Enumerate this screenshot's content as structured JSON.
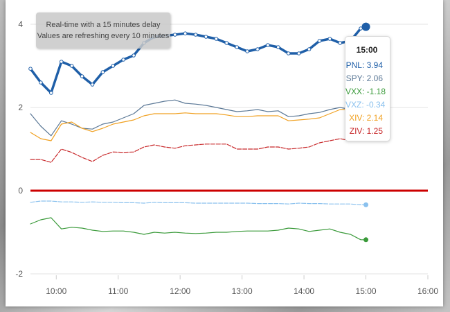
{
  "chart_data": {
    "type": "line",
    "xlim": [
      "09:35",
      "16:00"
    ],
    "ylim": [
      -2,
      4
    ],
    "x_ticks": [
      "10:00",
      "11:00",
      "12:00",
      "13:00",
      "14:00",
      "15:00",
      "16:00"
    ],
    "y_ticks": [
      "4",
      "2",
      "0",
      "-2"
    ],
    "grid": true,
    "x": [
      "09:35",
      "09:45",
      "09:55",
      "10:05",
      "10:15",
      "10:25",
      "10:35",
      "10:45",
      "10:55",
      "11:05",
      "11:15",
      "11:25",
      "11:35",
      "11:45",
      "11:55",
      "12:05",
      "12:15",
      "12:25",
      "12:35",
      "12:45",
      "12:55",
      "13:05",
      "13:15",
      "13:25",
      "13:35",
      "13:45",
      "13:55",
      "14:05",
      "14:15",
      "14:25",
      "14:35",
      "14:45",
      "14:55",
      "15:00"
    ],
    "series": [
      {
        "name": "PNL",
        "color": "#1f5fa8",
        "values": [
          2.93,
          2.6,
          2.35,
          3.1,
          3.0,
          2.75,
          2.55,
          2.85,
          3.0,
          3.15,
          3.25,
          3.55,
          3.7,
          3.72,
          3.75,
          3.78,
          3.75,
          3.7,
          3.65,
          3.55,
          3.45,
          3.35,
          3.4,
          3.5,
          3.45,
          3.3,
          3.3,
          3.4,
          3.6,
          3.65,
          3.55,
          3.6,
          3.9,
          3.94
        ]
      },
      {
        "name": "SPY",
        "color": "#5b7896",
        "values": [
          1.85,
          1.55,
          1.32,
          1.68,
          1.6,
          1.5,
          1.48,
          1.6,
          1.65,
          1.75,
          1.85,
          2.05,
          2.1,
          2.15,
          2.18,
          2.1,
          2.08,
          2.05,
          2.0,
          1.95,
          1.9,
          1.92,
          1.95,
          1.9,
          1.92,
          1.78,
          1.8,
          1.85,
          1.88,
          1.95,
          2.0,
          1.95,
          2.05,
          2.06
        ]
      },
      {
        "name": "VXX",
        "color": "#3a9a3a",
        "values": [
          -0.8,
          -0.7,
          -0.65,
          -0.92,
          -0.88,
          -0.9,
          -0.95,
          -0.98,
          -0.97,
          -0.97,
          -1.0,
          -1.05,
          -1.0,
          -1.02,
          -1.0,
          -1.02,
          -1.03,
          -1.02,
          -1.0,
          -1.0,
          -0.98,
          -0.97,
          -0.97,
          -0.97,
          -0.95,
          -0.9,
          -0.92,
          -0.98,
          -0.95,
          -0.92,
          -1.0,
          -1.05,
          -1.18,
          -1.18
        ]
      },
      {
        "name": "VXZ",
        "color": "#8ac1ee",
        "values": [
          -0.28,
          -0.25,
          -0.25,
          -0.27,
          -0.27,
          -0.28,
          -0.27,
          -0.28,
          -0.28,
          -0.29,
          -0.29,
          -0.3,
          -0.28,
          -0.29,
          -0.29,
          -0.29,
          -0.3,
          -0.3,
          -0.3,
          -0.3,
          -0.3,
          -0.3,
          -0.31,
          -0.31,
          -0.31,
          -0.32,
          -0.3,
          -0.31,
          -0.31,
          -0.32,
          -0.32,
          -0.32,
          -0.34,
          -0.34
        ]
      },
      {
        "name": "XIV",
        "color": "#f0a020",
        "values": [
          1.4,
          1.25,
          1.2,
          1.6,
          1.65,
          1.5,
          1.42,
          1.5,
          1.6,
          1.65,
          1.7,
          1.8,
          1.85,
          1.85,
          1.85,
          1.87,
          1.85,
          1.85,
          1.85,
          1.82,
          1.78,
          1.78,
          1.8,
          1.8,
          1.8,
          1.68,
          1.7,
          1.72,
          1.75,
          1.85,
          1.95,
          1.95,
          2.1,
          2.14
        ]
      },
      {
        "name": "ZIV",
        "color": "#c8282a",
        "values": [
          0.75,
          0.75,
          0.68,
          1.0,
          0.92,
          0.8,
          0.7,
          0.85,
          0.93,
          0.92,
          0.93,
          1.05,
          1.1,
          1.05,
          1.02,
          1.08,
          1.1,
          1.12,
          1.12,
          1.12,
          1.0,
          1.0,
          1.0,
          1.05,
          1.05,
          1.0,
          1.02,
          1.05,
          1.15,
          1.2,
          1.25,
          1.2,
          1.25,
          1.25
        ]
      }
    ],
    "reference_line": {
      "y": 0,
      "color": "#cc0000"
    }
  },
  "notice": {
    "line1": "Real-time with a 15 minutes delay",
    "line2": "Values are refreshing every 10 minutes"
  },
  "tooltip": {
    "time": "15:00",
    "rows": [
      {
        "label": "PNL: 3.94",
        "color": "#1f5fa8"
      },
      {
        "label": "SPY: 2.06",
        "color": "#5b7896"
      },
      {
        "label": "VXX: -1.18",
        "color": "#3a9a3a"
      },
      {
        "label": "VXZ: -0.34",
        "color": "#8ac1ee"
      },
      {
        "label": "XIV: 2.14",
        "color": "#f0a020"
      },
      {
        "label": "ZIV: 1.25",
        "color": "#c8282a"
      }
    ]
  }
}
